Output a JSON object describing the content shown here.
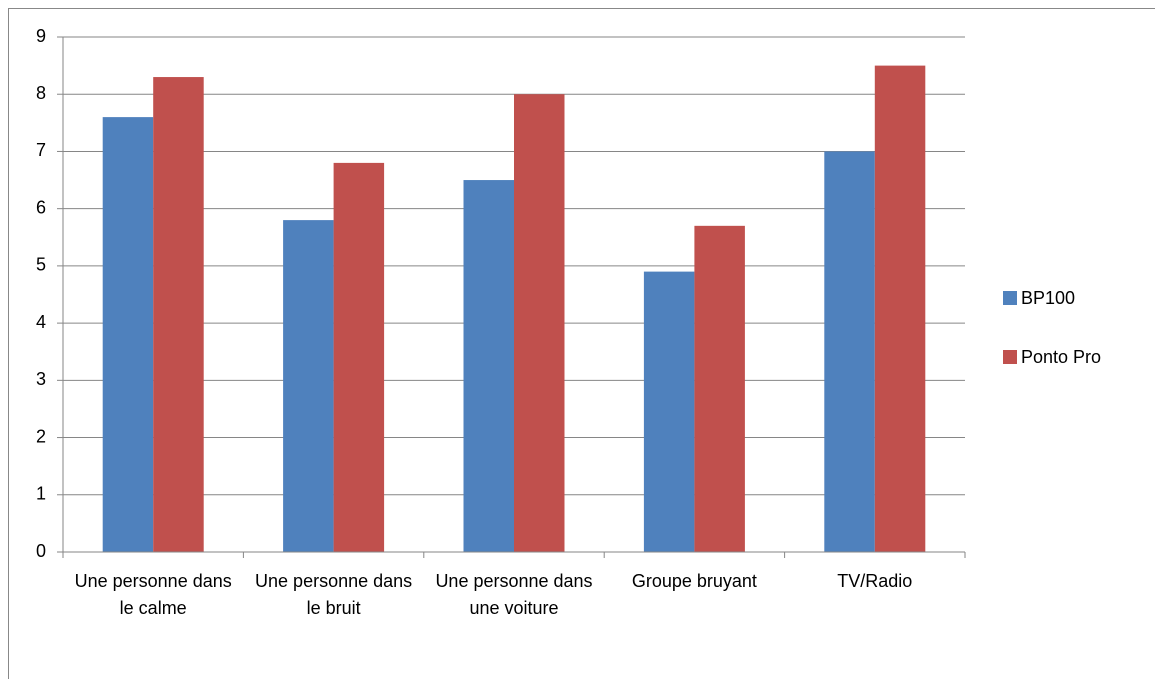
{
  "chart_data": {
    "type": "bar",
    "categories": [
      "Une personne dans le calme",
      "Une personne dans le bruit",
      "Une personne dans une voiture",
      "Groupe bruyant",
      "TV/Radio"
    ],
    "series": [
      {
        "name": "BP100",
        "color": "#4f81bd",
        "values": [
          7.6,
          5.8,
          6.5,
          4.9,
          7.0
        ]
      },
      {
        "name": "Ponto Pro",
        "color": "#c0504d",
        "values": [
          8.3,
          6.8,
          8.0,
          5.7,
          8.5
        ]
      }
    ],
    "ylim": [
      0,
      9
    ],
    "yticks": [
      0,
      1,
      2,
      3,
      4,
      5,
      6,
      7,
      8,
      9
    ],
    "grid": true,
    "legend": "right"
  }
}
